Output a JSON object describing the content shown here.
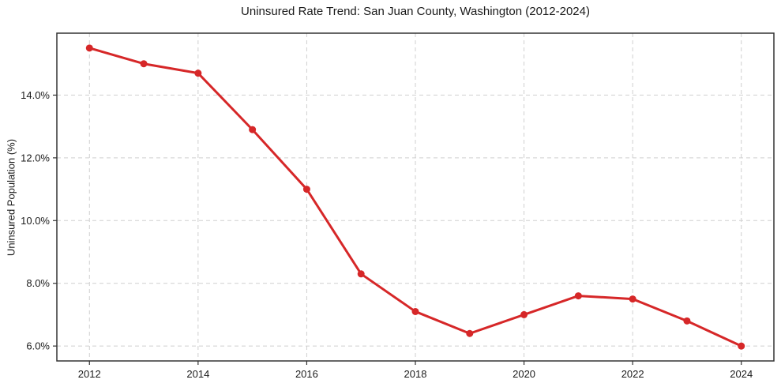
{
  "chart_data": {
    "type": "line",
    "title": "Uninsured Rate Trend: San Juan County, Washington (2012-2024)",
    "xlabel": "",
    "ylabel": "Uninsured Population (%)",
    "x": [
      2012,
      2013,
      2014,
      2015,
      2016,
      2017,
      2018,
      2019,
      2020,
      2021,
      2022,
      2023,
      2024
    ],
    "series": [
      {
        "name": "Uninsured Population (%)",
        "values": [
          15.5,
          15.0,
          14.7,
          12.9,
          11.0,
          8.3,
          7.1,
          6.4,
          7.0,
          7.6,
          7.5,
          6.8,
          6.0
        ],
        "color": "#d62728",
        "marker": "circle"
      }
    ],
    "xticks": {
      "values": [
        2012,
        2014,
        2016,
        2018,
        2020,
        2022,
        2024
      ],
      "labels": [
        "2012",
        "2014",
        "2016",
        "2018",
        "2020",
        "2022",
        "2024"
      ]
    },
    "yticks": {
      "values": [
        6,
        8,
        10,
        12,
        14
      ],
      "labels": [
        "6.0%",
        "8.0%",
        "10.0%",
        "12.0%",
        "14.0%"
      ]
    },
    "xlim": [
      2011.4,
      2024.6
    ],
    "ylim": [
      5.525,
      15.975
    ],
    "grid": true,
    "grid_style": "dashed",
    "legend_position": "none",
    "colors": {
      "line": "#d62728",
      "marker": "#d62728",
      "grid": "#cfcfcf",
      "spine": "#333333",
      "tick_label": "#1a1a1a",
      "title": "#1a1a1a",
      "background": "#ffffff"
    }
  }
}
